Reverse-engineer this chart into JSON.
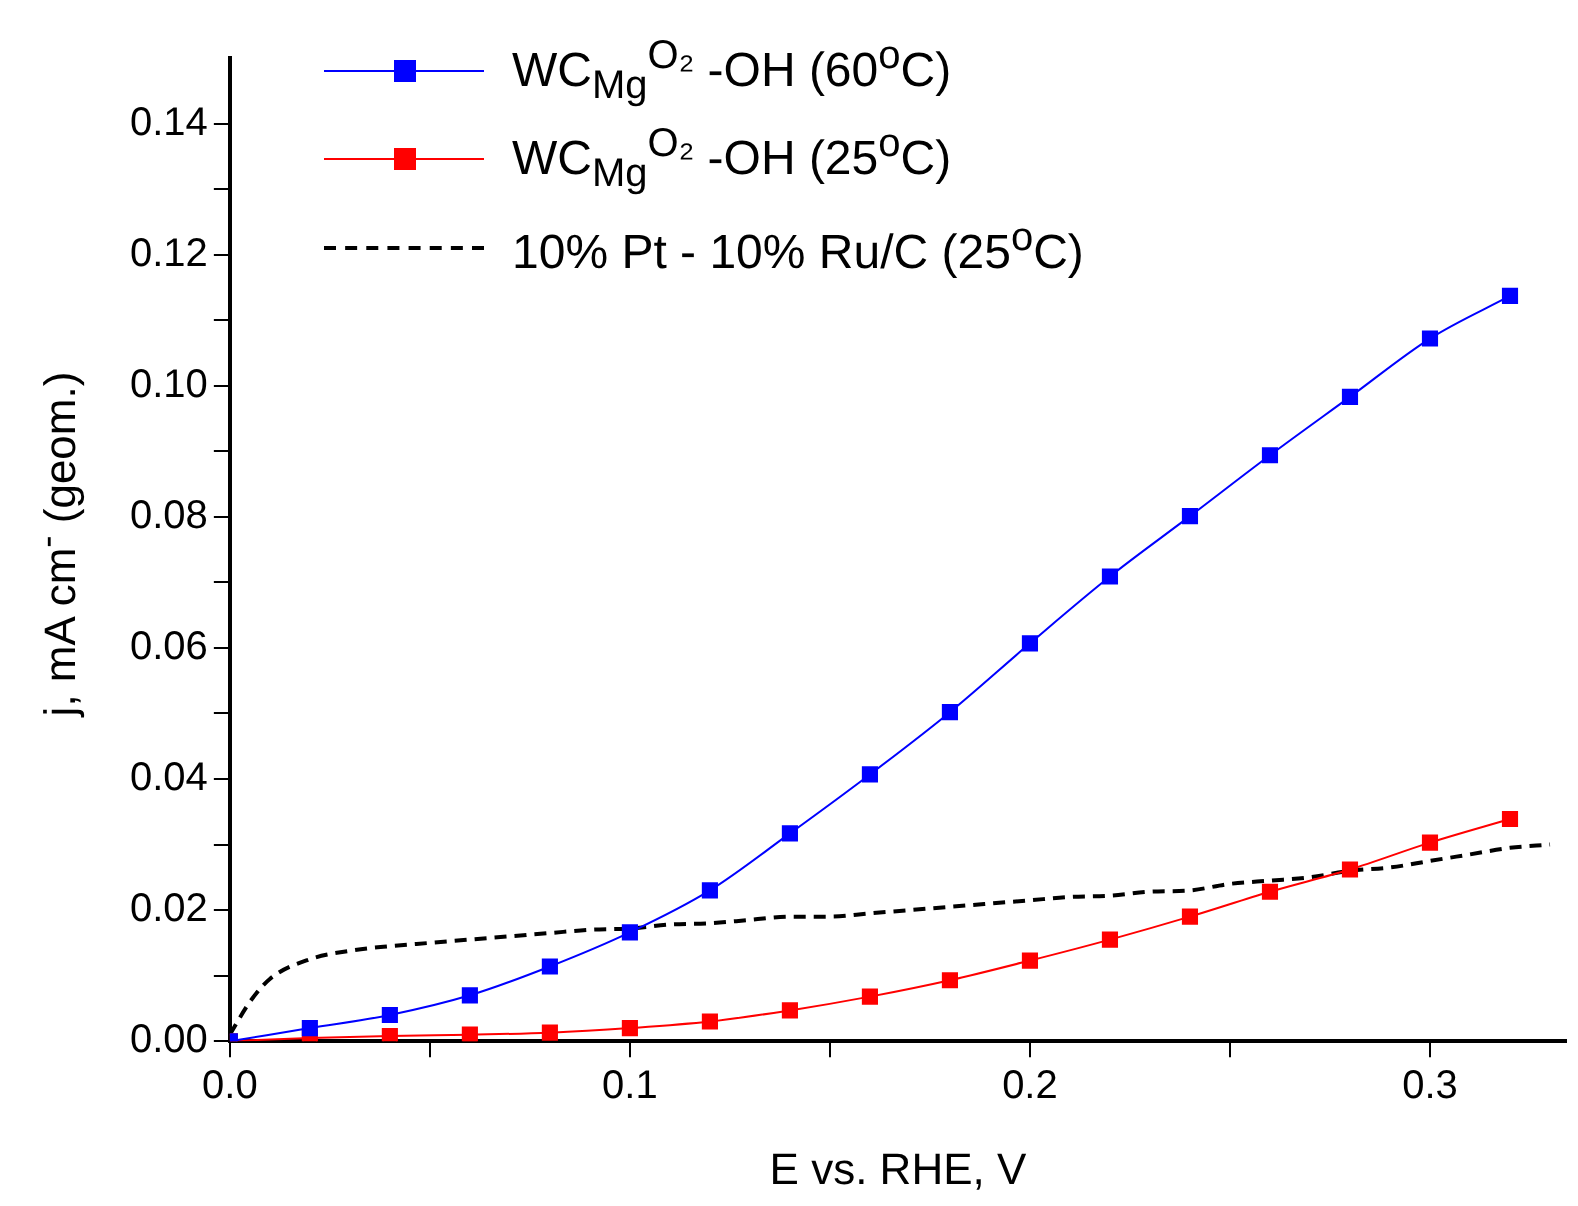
{
  "chart_data": {
    "type": "line",
    "xlabel": "E vs. RHE, V",
    "ylabel": "j, mA cm$^{-}$ (geom.)",
    "xlim": [
      0,
      0.334
    ],
    "xticks": [
      {
        "value": 0,
        "label": "0.0"
      },
      {
        "value": 0.05,
        "label": null
      },
      {
        "value": 0.1,
        "label": "0.1"
      },
      {
        "value": 0.15,
        "label": null
      },
      {
        "value": 0.2,
        "label": "0.2"
      },
      {
        "value": 0.25,
        "label": null
      },
      {
        "value": 0.3,
        "label": "0.3"
      }
    ],
    "ylim": [
      0,
      0.15
    ],
    "yticks": [
      {
        "value": 0,
        "label": "0.00"
      },
      {
        "value": 0.01,
        "label": null
      },
      {
        "value": 0.02,
        "label": "0.02"
      },
      {
        "value": 0.03,
        "label": null
      },
      {
        "value": 0.04,
        "label": "0.04"
      },
      {
        "value": 0.05,
        "label": null
      },
      {
        "value": 0.06,
        "label": "0.06"
      },
      {
        "value": 0.07,
        "label": null
      },
      {
        "value": 0.08,
        "label": "0.08"
      },
      {
        "value": 0.09,
        "label": null
      },
      {
        "value": 0.1,
        "label": "0.10"
      },
      {
        "value": 0.11,
        "label": null
      },
      {
        "value": 0.12,
        "label": "0.12"
      },
      {
        "value": 0.13,
        "label": null
      },
      {
        "value": 0.14,
        "label": "0.14"
      }
    ],
    "legend": "top left",
    "series": [
      {
        "name": "WC$_{Mg}$$^{O₂}$ -OH (60$^{o}$C)",
        "color": "#0000ff",
        "marker": "square",
        "line_style": "solid",
        "x": [
          0,
          0.02,
          0.04,
          0.06,
          0.08,
          0.1,
          0.12,
          0.14,
          0.16,
          0.18,
          0.2,
          0.22,
          0.24,
          0.26,
          0.28,
          0.3,
          0.32
        ],
        "values": [
          0,
          0.002,
          0.004,
          0.007,
          0.0114,
          0.0166,
          0.023,
          0.0317,
          0.0407,
          0.0502,
          0.0607,
          0.0709,
          0.0801,
          0.0894,
          0.0983,
          0.1072,
          0.1137
        ]
      },
      {
        "name": "WC$_{Mg}$$^{O₂}$ -OH (25$^{o}$C)",
        "color": "#ff0000",
        "marker": "square",
        "line_style": "solid",
        "x": [
          0,
          0.02,
          0.04,
          0.06,
          0.08,
          0.1,
          0.12,
          0.14,
          0.16,
          0.18,
          0.2,
          0.22,
          0.24,
          0.26,
          0.28,
          0.3,
          0.32
        ],
        "values": [
          0,
          0.0005,
          0.0008,
          0.001,
          0.0013,
          0.002,
          0.003,
          0.0047,
          0.0068,
          0.0093,
          0.0123,
          0.0155,
          0.019,
          0.0228,
          0.0262,
          0.0303,
          0.0339
        ]
      },
      {
        "name": "10% Pt - 10% Ru/C (25$^{o}$C)",
        "color": "#000000",
        "marker": "none",
        "line_style": "dashed",
        "x": [
          0,
          0.005,
          0.01,
          0.02,
          0.03,
          0.04,
          0.05,
          0.06,
          0.07,
          0.08,
          0.09,
          0.1,
          0.11,
          0.12,
          0.13,
          0.14,
          0.15,
          0.16,
          0.17,
          0.18,
          0.19,
          0.2,
          0.21,
          0.22,
          0.23,
          0.24,
          0.25,
          0.26,
          0.27,
          0.28,
          0.29,
          0.3,
          0.31,
          0.32,
          0.33
        ],
        "values": [
          0.001,
          0.006,
          0.0095,
          0.0125,
          0.0138,
          0.0145,
          0.015,
          0.0155,
          0.016,
          0.0165,
          0.017,
          0.0172,
          0.0178,
          0.018,
          0.0185,
          0.019,
          0.019,
          0.0195,
          0.02,
          0.0205,
          0.021,
          0.0215,
          0.022,
          0.0222,
          0.0228,
          0.023,
          0.024,
          0.0245,
          0.025,
          0.026,
          0.0265,
          0.0275,
          0.0285,
          0.0295,
          0.03
        ]
      }
    ]
  }
}
